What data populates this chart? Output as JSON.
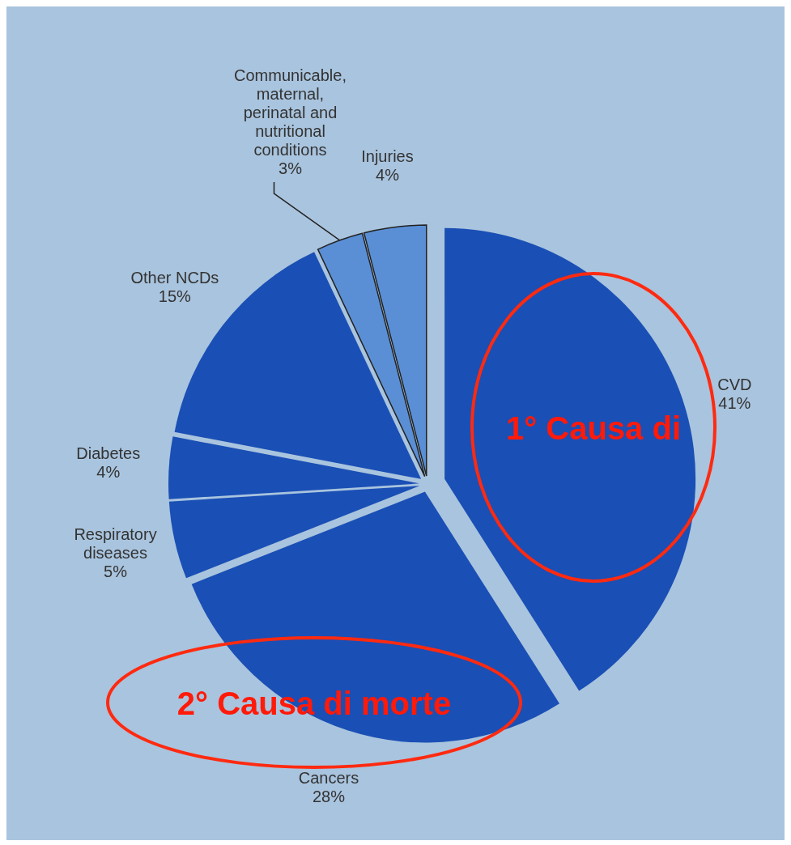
{
  "chart_data": {
    "type": "pie",
    "categories": [
      "CVD",
      "Cancers",
      "Respiratory diseases",
      "Diabetes",
      "Other NCDs",
      "Communicable, maternal, perinatal and nutritional conditions",
      "Injuries"
    ],
    "values": [
      41,
      28,
      5,
      4,
      15,
      3,
      4
    ],
    "colors": [
      "#1a4fb5",
      "#1a4fb5",
      "#1a4fb5",
      "#1a4fb5",
      "#1a4fb5",
      "#5a8fd6",
      "#5a8fd6"
    ],
    "value_labels": [
      "41%",
      "28%",
      "5%",
      "4%",
      "15%",
      "3%",
      "4%"
    ],
    "annotations": [
      "1° Causa di",
      "2° Causa di morte"
    ]
  }
}
